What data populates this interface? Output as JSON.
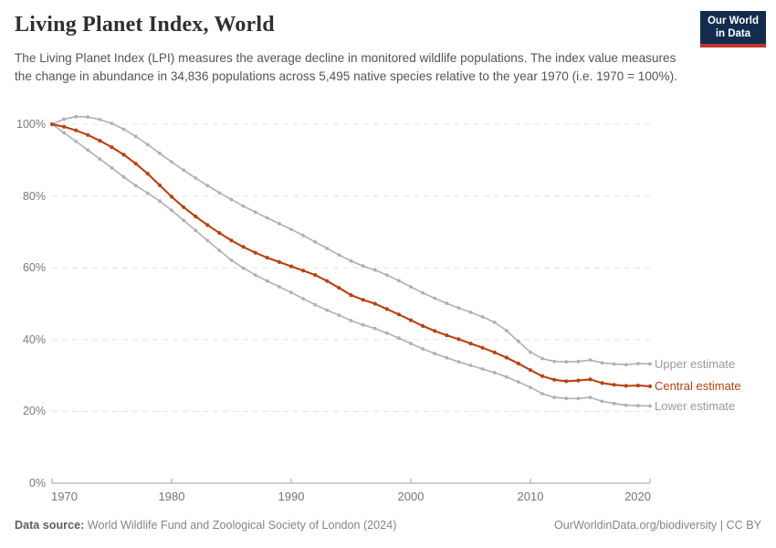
{
  "header": {
    "title": "Living Planet Index, World",
    "subtitle": "The Living Planet Index (LPI) measures the average decline in monitored wildlife populations. The index value measures the change in abundance in 34,836 populations across 5,495 native species relative to the year 1970 (i.e. 1970 = 100%).",
    "logo_line1": "Our World",
    "logo_line2": "in Data"
  },
  "chart_data": {
    "type": "line",
    "title": "Living Planet Index, World",
    "x": [
      1970,
      1971,
      1972,
      1973,
      1974,
      1975,
      1976,
      1977,
      1978,
      1979,
      1980,
      1981,
      1982,
      1983,
      1984,
      1985,
      1986,
      1987,
      1988,
      1989,
      1990,
      1991,
      1992,
      1993,
      1994,
      1995,
      1996,
      1997,
      1998,
      1999,
      2000,
      2001,
      2002,
      2003,
      2004,
      2005,
      2006,
      2007,
      2008,
      2009,
      2010,
      2011,
      2012,
      2013,
      2014,
      2015,
      2016,
      2017,
      2018,
      2019,
      2020
    ],
    "series": [
      {
        "name": "Upper estimate",
        "color": "#b0b0b0",
        "label_color": "#9a9a9a",
        "values": [
          100,
          101.4,
          102.1,
          102.0,
          101.3,
          100.2,
          98.6,
          96.6,
          94.3,
          91.9,
          89.5,
          87.2,
          85.0,
          82.9,
          80.9,
          79.0,
          77.2,
          75.5,
          73.9,
          72.3,
          70.7,
          69.0,
          67.2,
          65.4,
          63.6,
          61.9,
          60.5,
          59.4,
          58.0,
          56.4,
          54.7,
          53.0,
          51.5,
          50.1,
          48.8,
          47.6,
          46.3,
          44.8,
          42.5,
          39.5,
          36.5,
          34.7,
          33.9,
          33.8,
          33.9,
          34.3,
          33.5,
          33.2,
          33.0,
          33.3,
          33.2
        ]
      },
      {
        "name": "Central estimate",
        "color": "#b84211",
        "label_color": "#b84211",
        "values": [
          100,
          99.3,
          98.3,
          97.0,
          95.4,
          93.6,
          91.5,
          89.0,
          86.2,
          83.0,
          79.8,
          76.9,
          74.3,
          71.9,
          69.7,
          67.6,
          65.8,
          64.2,
          62.8,
          61.6,
          60.4,
          59.2,
          58.0,
          56.3,
          54.4,
          52.4,
          51.1,
          50.0,
          48.5,
          47.0,
          45.4,
          43.8,
          42.4,
          41.2,
          40.1,
          38.9,
          37.7,
          36.4,
          35.0,
          33.3,
          31.5,
          29.8,
          28.8,
          28.4,
          28.6,
          28.9,
          27.9,
          27.4,
          27.1,
          27.2,
          27.0
        ]
      },
      {
        "name": "Lower estimate",
        "color": "#b0b0b0",
        "label_color": "#9a9a9a",
        "values": [
          100,
          97.6,
          95.2,
          92.8,
          90.3,
          87.8,
          85.3,
          82.9,
          80.8,
          78.6,
          76.0,
          73.2,
          70.4,
          67.6,
          64.8,
          62.1,
          59.9,
          58.0,
          56.3,
          54.7,
          53.1,
          51.4,
          49.7,
          48.2,
          46.8,
          45.3,
          44.1,
          43.1,
          41.8,
          40.4,
          38.9,
          37.4,
          36.1,
          34.9,
          33.8,
          32.8,
          31.8,
          30.8,
          29.6,
          28.2,
          26.7,
          24.9,
          23.9,
          23.6,
          23.6,
          23.9,
          22.8,
          22.2,
          21.7,
          21.6,
          21.5
        ]
      }
    ],
    "xlabel": "",
    "ylabel": "",
    "xlim": [
      1970,
      2020
    ],
    "ylim": [
      0,
      100
    ],
    "x_ticks": [
      "1970",
      "1980",
      "1990",
      "2000",
      "2010",
      "2020"
    ],
    "x_tick_values": [
      1970,
      1980,
      1990,
      2000,
      2010,
      2020
    ],
    "y_ticks": [
      "0%",
      "20%",
      "40%",
      "60%",
      "80%",
      "100%"
    ],
    "y_tick_values": [
      0,
      20,
      40,
      60,
      80,
      100
    ],
    "grid": "horizontal dashed",
    "legend_position": "right of line ends",
    "markers": "dot at every yearly data point"
  },
  "footer": {
    "source_label": "Data source:",
    "source_text": " World Wildlife Fund and Zoological Society of London (2024)",
    "right_text": "OurWorldinData.org/biodiversity | CC BY"
  },
  "colors": {
    "accent_red": "#b84211",
    "line_gray": "#b0b0b0",
    "grid": "#e4e4e4",
    "axis": "#a3a3a3",
    "tick_text": "#757575",
    "title_text": "#2f2f2f",
    "subtitle_text": "#555555",
    "footer_text": "#858585",
    "logo_bg": "#132c4d",
    "logo_stripe": "#bf352b"
  }
}
